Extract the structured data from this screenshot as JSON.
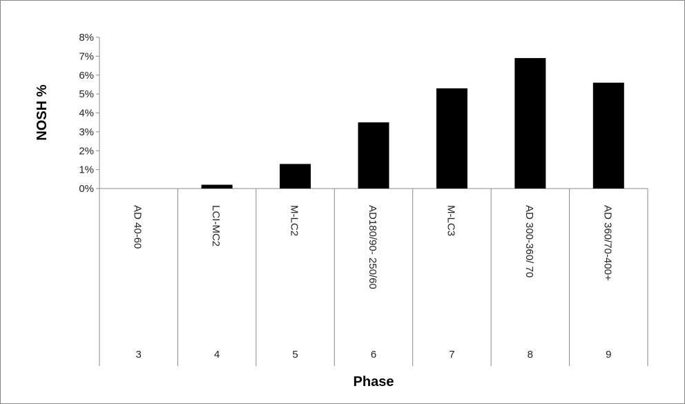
{
  "chart_data": {
    "type": "bar",
    "categories": [
      "AD 40-60",
      "LCI-MC2",
      "M-LC2",
      "AD180/90- 250/60",
      "M-LC3",
      "AD 300-360/ 70",
      "AD 360/70-400+"
    ],
    "phase_numbers": [
      "3",
      "4",
      "5",
      "6",
      "7",
      "8",
      "9"
    ],
    "values": [
      0.0,
      0.2,
      1.3,
      3.5,
      5.3,
      6.9,
      5.6
    ],
    "value_unit": "%",
    "xlabel": "Phase",
    "ylabel": "NOSH %",
    "ylim": [
      0,
      8
    ],
    "yticks": [
      "0%",
      "1%",
      "2%",
      "3%",
      "4%",
      "5%",
      "6%",
      "7%",
      "8%"
    ],
    "grid": false,
    "legend": "none",
    "bar_color": "#000000"
  }
}
